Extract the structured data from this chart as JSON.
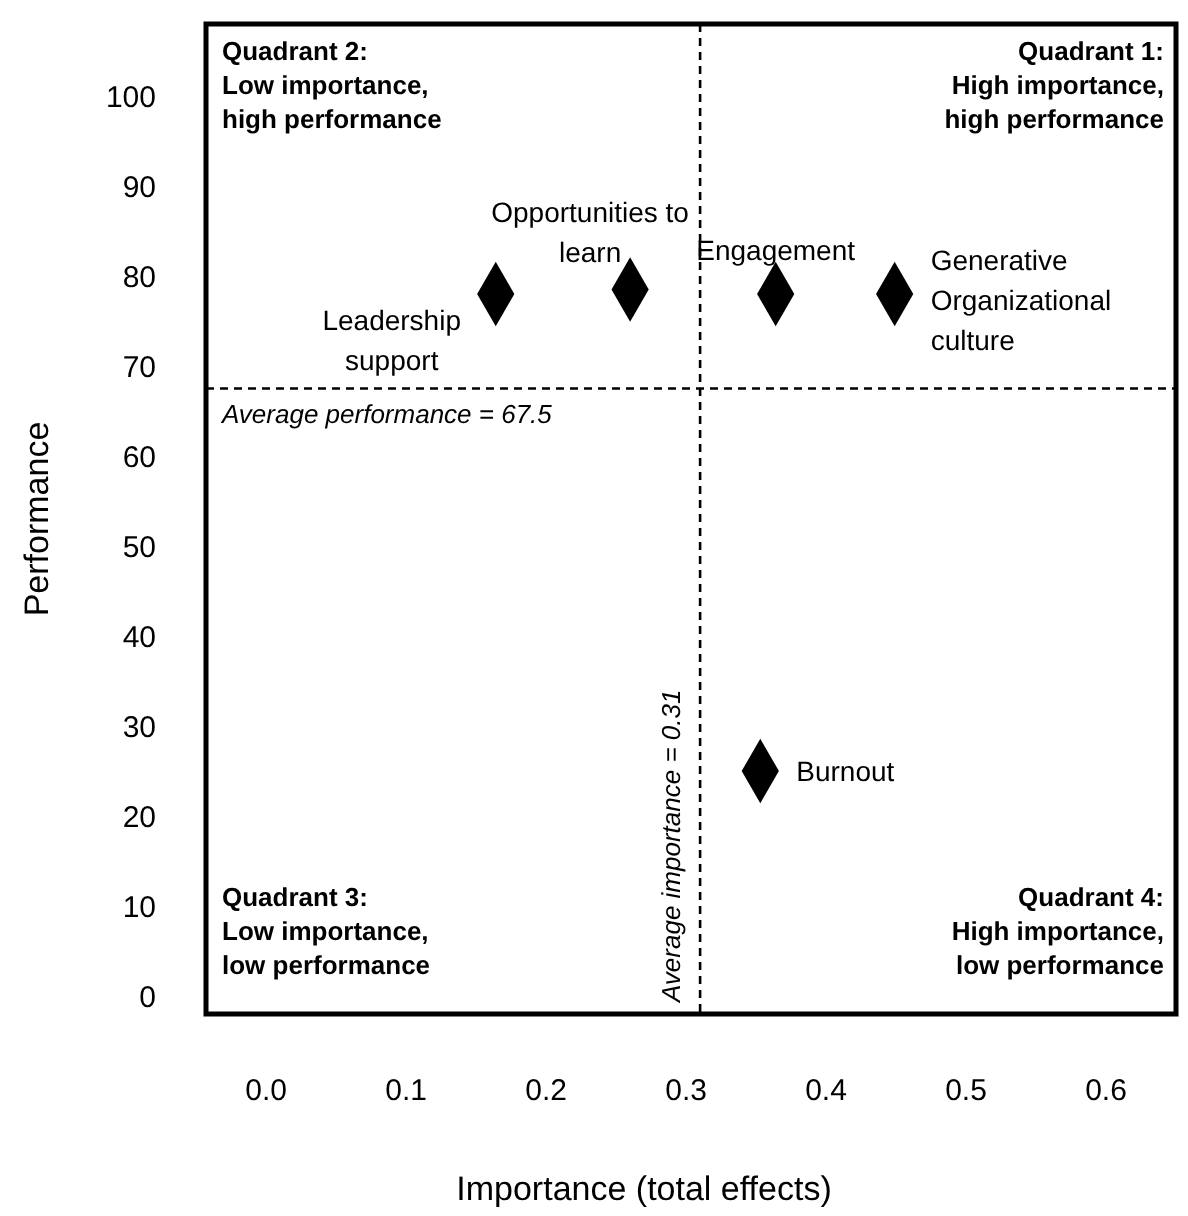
{
  "chart_data": {
    "type": "scatter",
    "xlabel": "Importance (total effects)",
    "ylabel": "Performance",
    "xlim": [
      -0.043,
      0.65
    ],
    "ylim": [
      -2,
      108
    ],
    "xticks": [
      {
        "value": 0,
        "label": "0.0"
      },
      {
        "value": 0.1,
        "label": "0.1"
      },
      {
        "value": 0.2,
        "label": "0.2"
      },
      {
        "value": 0.3,
        "label": "0.3"
      },
      {
        "value": 0.4,
        "label": "0.4"
      },
      {
        "value": 0.5,
        "label": "0.5"
      },
      {
        "value": 0.6,
        "label": "0.6"
      }
    ],
    "yticks": [
      0,
      10,
      20,
      30,
      40,
      50,
      60,
      70,
      80,
      90,
      100
    ],
    "marker": "diamond",
    "grid": false,
    "series": [
      {
        "name": "Leadership support",
        "color": "#000000",
        "x": [
          0.164
        ],
        "values": [
          78
        ]
      },
      {
        "name": "Opportunities to learn",
        "color": "#000000",
        "x": [
          0.26
        ],
        "values": [
          78.5
        ]
      },
      {
        "name": "Engagement",
        "color": "#000000",
        "x": [
          0.364
        ],
        "values": [
          78
        ]
      },
      {
        "name": "Generative Organizational culture",
        "color": "#000000",
        "x": [
          0.449
        ],
        "values": [
          78
        ]
      },
      {
        "name": "Burnout",
        "color": "#000000",
        "x": [
          0.353
        ],
        "values": [
          25
        ]
      }
    ],
    "ref_lines": [
      {
        "axis": "y",
        "value": 67.5,
        "label": "Average performance = 67.5",
        "line_style": "dashed"
      },
      {
        "axis": "x",
        "value": 0.31,
        "label": "Average importance = 0.31",
        "line_style": "dashed"
      }
    ],
    "annotations": [
      "Quadrant 2:\nLow importance,\nhigh performance",
      "Quadrant 1:\nHigh importance,\nhigh performance",
      "Quadrant 3:\nLow importance,\nlow performance",
      "Quadrant 4:\nHigh importance,\nlow performance"
    ]
  }
}
